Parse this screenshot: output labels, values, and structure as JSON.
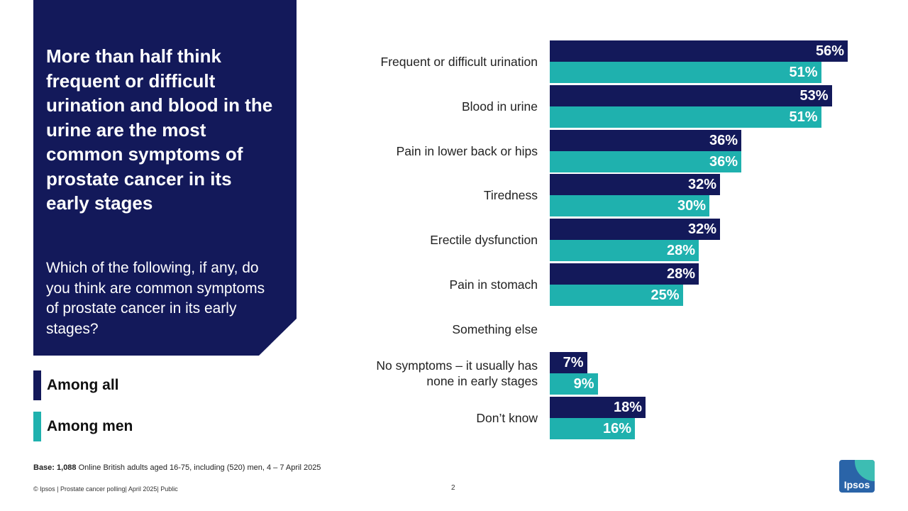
{
  "panel": {
    "headline": "More than half think frequent or difficult urination and blood in the urine are the most common symptoms of prostate cancer in its early stages",
    "question": "Which of the following, if any, do you think are common symptoms of prostate cancer in its early stages?"
  },
  "legend": {
    "all": "Among all",
    "men": "Among men"
  },
  "colors": {
    "all": "#13195a",
    "men": "#1fb1ae",
    "panel": "#13195a"
  },
  "chart_data": {
    "type": "bar",
    "orientation": "horizontal",
    "unit": "%",
    "xlim": [
      0,
      60
    ],
    "categories": [
      "Frequent or difficult urination",
      "Blood in urine",
      "Pain in lower back or hips",
      "Tiredness",
      "Erectile dysfunction",
      "Pain in stomach",
      "Something else",
      "No symptoms – it usually has none in early stages",
      "Don’t know"
    ],
    "series": [
      {
        "name": "Among all",
        "values": [
          56,
          53,
          36,
          32,
          32,
          28,
          null,
          7,
          18
        ],
        "labels": [
          "56%",
          "53%",
          "36%",
          "32%",
          "32%",
          "28%",
          "",
          "7%",
          "18%"
        ]
      },
      {
        "name": "Among men",
        "values": [
          51,
          51,
          36,
          30,
          28,
          25,
          null,
          9,
          16
        ],
        "labels": [
          "51%",
          "51%",
          "36%",
          "30%",
          "28%",
          "25%",
          "",
          "9%",
          "16%"
        ]
      }
    ],
    "label_lines": [
      [
        "Frequent or difficult urination"
      ],
      [
        "Blood in urine"
      ],
      [
        "Pain in lower back or hips"
      ],
      [
        "Tiredness"
      ],
      [
        "Erectile dysfunction"
      ],
      [
        "Pain in stomach"
      ],
      [
        "Something else"
      ],
      [
        "No symptoms – it usually has",
        "none in early stages"
      ],
      [
        "Don’t know"
      ]
    ]
  },
  "base": {
    "label": "Base: 1,088",
    "text": " Online British adults aged 16-75, including (520) men, 4 – 7 April 2025"
  },
  "footer": {
    "copyright": "© Ipsos | Prostate cancer polling| April 2025| Public",
    "page": "2"
  },
  "logo": {
    "text": "Ipsos"
  }
}
